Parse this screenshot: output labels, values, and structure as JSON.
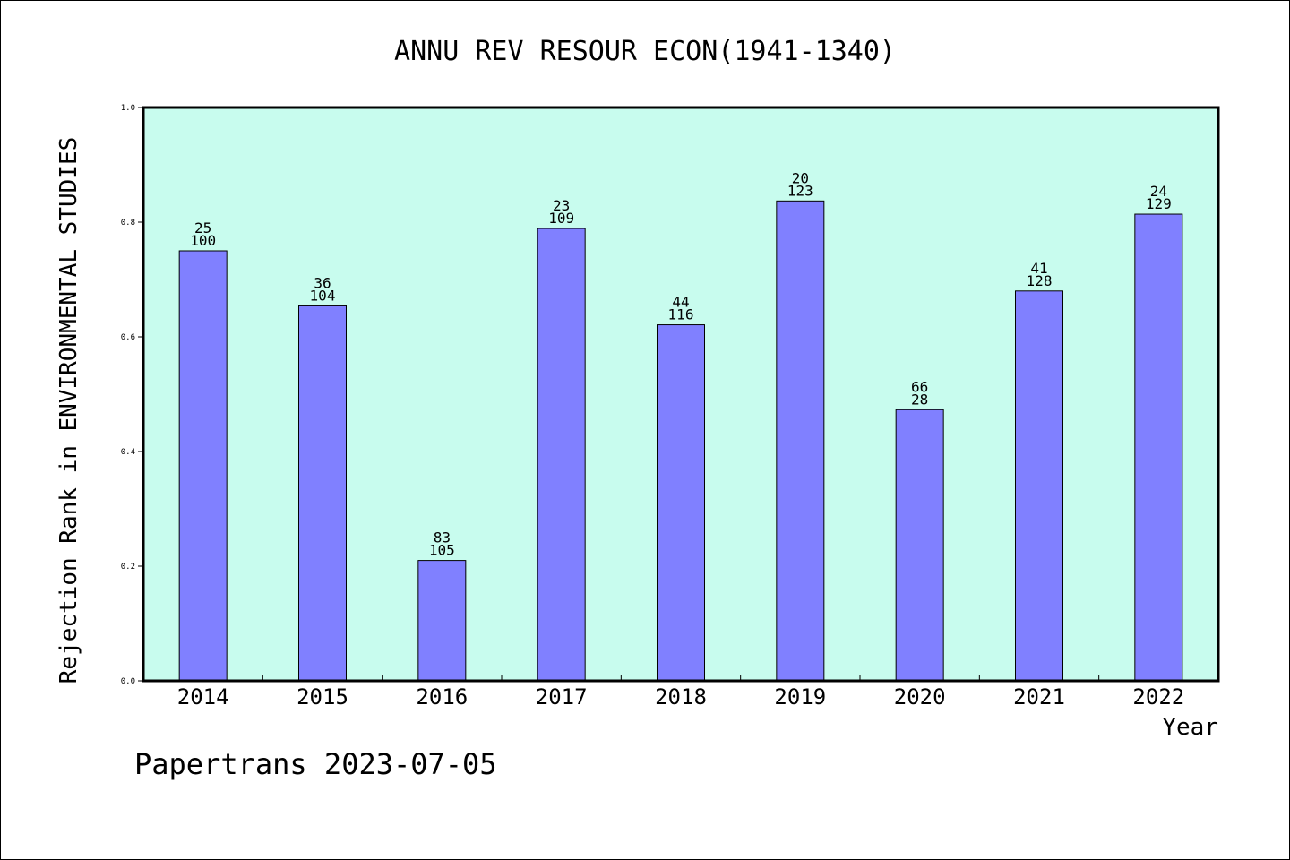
{
  "chart_data": {
    "type": "bar",
    "title": "ANNU REV RESOUR ECON(1941-1340)",
    "xlabel": "Year",
    "ylabel": "Rejection Rank in ENVIRONMENTAL STUDIES",
    "categories": [
      "2014",
      "2015",
      "2016",
      "2017",
      "2018",
      "2019",
      "2020",
      "2021",
      "2022"
    ],
    "values": [
      0.75,
      0.654,
      0.21,
      0.789,
      0.621,
      0.837,
      0.473,
      0.68,
      0.814
    ],
    "labels_top": [
      "25",
      "36",
      "83",
      "23",
      "44",
      "20",
      "66",
      "41",
      "24"
    ],
    "labels_bottom": [
      "100",
      "104",
      "105",
      "109",
      "116",
      "123",
      "28",
      "128",
      "129"
    ],
    "ylim": [
      0,
      1.0
    ],
    "yticks": [
      "0.0",
      "0.2",
      "0.4",
      "0.6",
      "0.8",
      "1.0"
    ],
    "grid": false,
    "legend": "none",
    "colors": {
      "plot_background": "#c8fcee",
      "bar_fill": "#8080ff",
      "bar_stroke": "#000000"
    }
  },
  "footer": {
    "text": "Papertrans 2023-07-05"
  }
}
